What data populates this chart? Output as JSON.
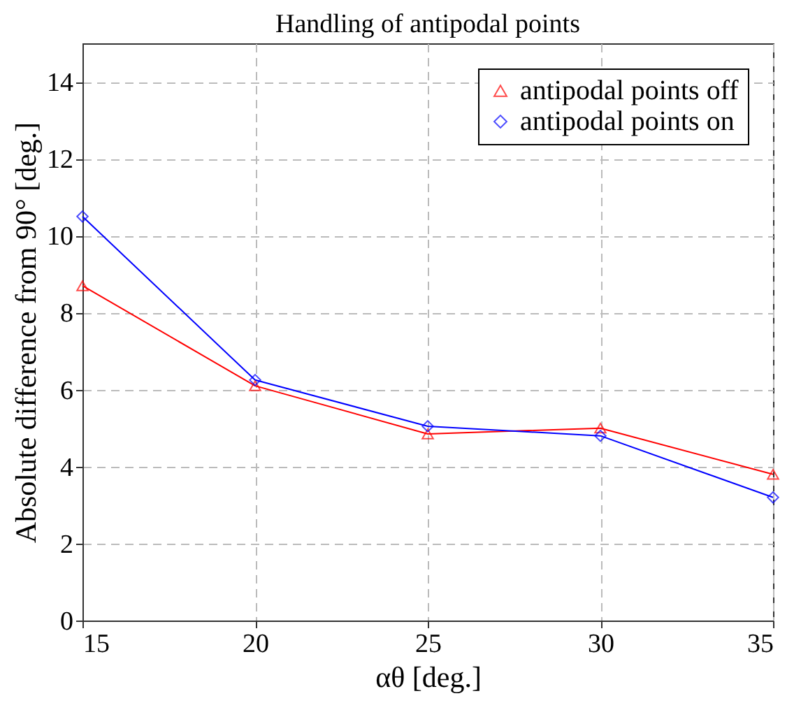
{
  "chart_data": {
    "type": "line",
    "title": "Handling of antipodal points",
    "xlabel": "αθ [deg.]",
    "ylabel": "Absolute difference from 90° [deg.]",
    "x": [
      15,
      20,
      25,
      30,
      35
    ],
    "series": [
      {
        "name": "antipodal points off",
        "color": "#ff0000",
        "marker": "triangle",
        "values": [
          8.7,
          6.1,
          4.85,
          5.0,
          3.8
        ]
      },
      {
        "name": "antipodal points on",
        "color": "#0000ff",
        "marker": "diamond",
        "values": [
          10.5,
          6.25,
          5.05,
          4.8,
          3.2
        ]
      }
    ],
    "xlim": [
      15,
      35
    ],
    "xticks": [
      15,
      20,
      25,
      30,
      35
    ],
    "ylim": [
      0,
      15
    ],
    "yticks": [
      0,
      2,
      4,
      6,
      8,
      10,
      12,
      14
    ],
    "grid": true,
    "legend": "top right",
    "line_style": "solid"
  }
}
